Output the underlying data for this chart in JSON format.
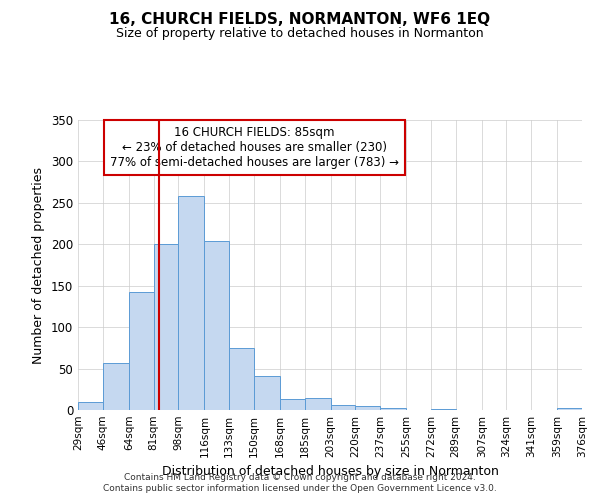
{
  "title": "16, CHURCH FIELDS, NORMANTON, WF6 1EQ",
  "subtitle": "Size of property relative to detached houses in Normanton",
  "xlabel": "Distribution of detached houses by size in Normanton",
  "ylabel": "Number of detached properties",
  "bar_color": "#c5d8f0",
  "bar_edge_color": "#5b9bd5",
  "background_color": "#ffffff",
  "grid_color": "#cccccc",
  "vline_x": 85,
  "vline_color": "#cc0000",
  "bin_edges": [
    29,
    46,
    64,
    81,
    98,
    116,
    133,
    150,
    168,
    185,
    203,
    220,
    237,
    255,
    272,
    289,
    307,
    324,
    341,
    359,
    376
  ],
  "bin_labels": [
    "29sqm",
    "46sqm",
    "64sqm",
    "81sqm",
    "98sqm",
    "116sqm",
    "133sqm",
    "150sqm",
    "168sqm",
    "185sqm",
    "203sqm",
    "220sqm",
    "237sqm",
    "255sqm",
    "272sqm",
    "289sqm",
    "307sqm",
    "324sqm",
    "341sqm",
    "359sqm",
    "376sqm"
  ],
  "counts": [
    10,
    57,
    143,
    200,
    258,
    204,
    75,
    41,
    13,
    15,
    6,
    5,
    2,
    0,
    1,
    0,
    0,
    0,
    0,
    2
  ],
  "ylim": [
    0,
    350
  ],
  "yticks": [
    0,
    50,
    100,
    150,
    200,
    250,
    300,
    350
  ],
  "annotation_title": "16 CHURCH FIELDS: 85sqm",
  "annotation_line1": "← 23% of detached houses are smaller (230)",
  "annotation_line2": "77% of semi-detached houses are larger (783) →",
  "annotation_box_color": "#ffffff",
  "annotation_box_edge": "#cc0000",
  "footer_line1": "Contains HM Land Registry data © Crown copyright and database right 2024.",
  "footer_line2": "Contains public sector information licensed under the Open Government Licence v3.0."
}
